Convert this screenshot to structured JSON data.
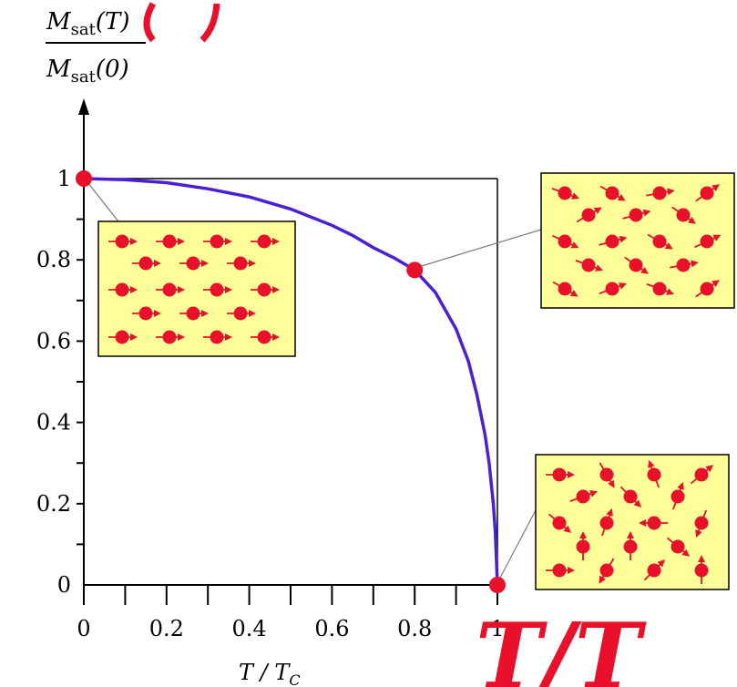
{
  "chart_data": {
    "type": "line",
    "title": "",
    "xlabel": "T / T",
    "xlabel_sub": "C",
    "ylabel_num": "M",
    "ylabel_num_sub": "sat",
    "ylabel_num_arg": "(T)",
    "ylabel_den": "M",
    "ylabel_den_sub": "sat",
    "ylabel_den_arg": "(0)",
    "xlim": [
      0,
      1
    ],
    "ylim": [
      0,
      1
    ],
    "x_ticks": [
      "0",
      "0.2",
      "0.4",
      "0.6",
      "0.8",
      "1"
    ],
    "x_tick_values": [
      0,
      0.2,
      0.4,
      0.6,
      0.8,
      1
    ],
    "y_ticks": [
      "0",
      "0.2",
      "0.4",
      "0.6",
      "0.8",
      "1"
    ],
    "y_tick_values": [
      0,
      0.2,
      0.4,
      0.6,
      0.8,
      1
    ],
    "series": [
      {
        "x": [
          0,
          0.1,
          0.2,
          0.3,
          0.4,
          0.5,
          0.6,
          0.65,
          0.7,
          0.75,
          0.8,
          0.85,
          0.9,
          0.93,
          0.95,
          0.97,
          0.98,
          0.99,
          0.995,
          1.0
        ],
        "values": [
          1.0,
          0.997,
          0.99,
          0.975,
          0.955,
          0.925,
          0.885,
          0.86,
          0.83,
          0.805,
          0.775,
          0.72,
          0.63,
          0.55,
          0.47,
          0.37,
          0.3,
          0.2,
          0.13,
          0.0
        ]
      }
    ],
    "markers": [
      {
        "x": 0,
        "y": 1
      },
      {
        "x": 0.8,
        "y": 0.775
      },
      {
        "x": 1,
        "y": 0
      }
    ],
    "corner_annotation": "T/T",
    "colors": {
      "curve": "#4a1fd6",
      "marker": "#e8102a",
      "inset_fill": "#ffff99",
      "axes": "#000000",
      "leader": "#7a7a7a"
    }
  }
}
